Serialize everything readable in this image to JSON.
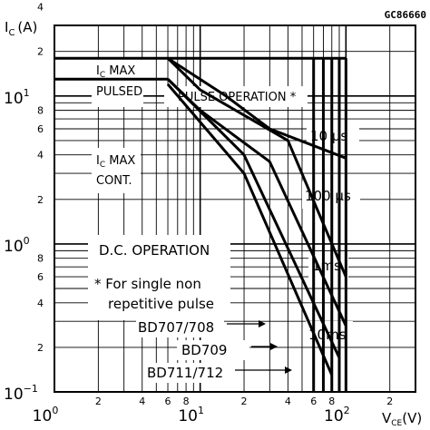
{
  "figure_code": "GC86660",
  "chart_data": {
    "type": "line",
    "xscale": "log",
    "yscale": "log",
    "xlim": [
      1,
      300
    ],
    "ylim": [
      0.1,
      30
    ],
    "grid": true,
    "xlabel_main": "V",
    "xlabel_sub": "CE",
    "xlabel_unit": "(V)",
    "ylabel_main": "I",
    "ylabel_sub": "C",
    "ylabel_unit": "(A)",
    "x_major_ticks": [
      {
        "value": 1,
        "base": "10",
        "exp": "0"
      },
      {
        "value": 10,
        "base": "10",
        "exp": "1"
      },
      {
        "value": 100,
        "base": "10",
        "exp": "2"
      }
    ],
    "x_minor_ticks": [
      {
        "value": 2,
        "label": "2"
      },
      {
        "value": 4,
        "label": "4"
      },
      {
        "value": 6,
        "label": "6"
      },
      {
        "value": 8,
        "label": "8"
      },
      {
        "value": 20,
        "label": "2"
      },
      {
        "value": 40,
        "label": "4"
      },
      {
        "value": 60,
        "label": "6"
      },
      {
        "value": 80,
        "label": "8"
      },
      {
        "value": 200,
        "label": "2"
      },
      {
        "value": 400,
        "label": "4"
      },
      {
        "value": 600,
        "label": "6"
      },
      {
        "value": 800,
        "label": "8"
      }
    ],
    "y_major_ticks": [
      {
        "value": 0.1,
        "base": "10",
        "exp": "−1"
      },
      {
        "value": 1,
        "base": "10",
        "exp": "0"
      },
      {
        "value": 10,
        "base": "10",
        "exp": "1"
      }
    ],
    "y_minor_ticks": [
      {
        "value": 0.2,
        "label": "2"
      },
      {
        "value": 0.4,
        "label": "4"
      },
      {
        "value": 0.6,
        "label": "6"
      },
      {
        "value": 0.8,
        "label": "8"
      },
      {
        "value": 2,
        "label": "2"
      },
      {
        "value": 4,
        "label": "4"
      },
      {
        "value": 6,
        "label": "6"
      },
      {
        "value": 8,
        "label": "8"
      },
      {
        "value": 20,
        "label": "2"
      },
      {
        "value": 40,
        "label": "4"
      }
    ],
    "series": [
      {
        "name": "10 µs",
        "points": [
          [
            6,
            18
          ],
          [
            15,
            10
          ],
          [
            30,
            6
          ],
          [
            100,
            3.8
          ]
        ]
      },
      {
        "name": "100 µs",
        "points": [
          [
            6,
            18
          ],
          [
            10,
            11
          ],
          [
            40,
            5
          ],
          [
            100,
            0.6
          ]
        ]
      },
      {
        "name": "1ms",
        "points": [
          [
            6,
            13
          ],
          [
            10,
            8
          ],
          [
            30,
            3.6
          ],
          [
            100,
            0.28
          ]
        ]
      },
      {
        "name": "10ms",
        "points": [
          [
            6,
            13
          ],
          [
            20,
            4
          ],
          [
            90,
            0.17
          ]
        ]
      },
      {
        "name": "DC",
        "points": [
          [
            6,
            12
          ],
          [
            20,
            3
          ],
          [
            80,
            0.13
          ]
        ]
      },
      {
        "name": "IC MAX PULSED",
        "points": [
          [
            1,
            18
          ],
          [
            100,
            18
          ]
        ]
      },
      {
        "name": "IC MAX CONT.",
        "points": [
          [
            1,
            13
          ],
          [
            6,
            13
          ]
        ]
      }
    ],
    "vertical_limits": [
      60,
      70,
      80,
      90,
      100
    ],
    "annotations": {
      "ic_max_pulsed": {
        "line1": "I",
        "line1_sub": "C",
        "line1_rest": " MAX",
        "line2": "PULSED"
      },
      "ic_max_cont": {
        "line1": "I",
        "line1_sub": "C",
        "line1_rest": " MAX",
        "line2": "CONT."
      },
      "pulse_operation": "PULSE OPERATION *",
      "dc_operation": "D.C. OPERATION",
      "note_line1": "* For single non",
      "note_line2": "repetitive pulse",
      "bd707": "BD707/708",
      "bd709": "BD709",
      "bd711": "BD711/712",
      "curve_10us": "10 µs",
      "curve_100us": "100 µs",
      "curve_1ms": "1ms",
      "curve_10ms": "10ms"
    }
  }
}
